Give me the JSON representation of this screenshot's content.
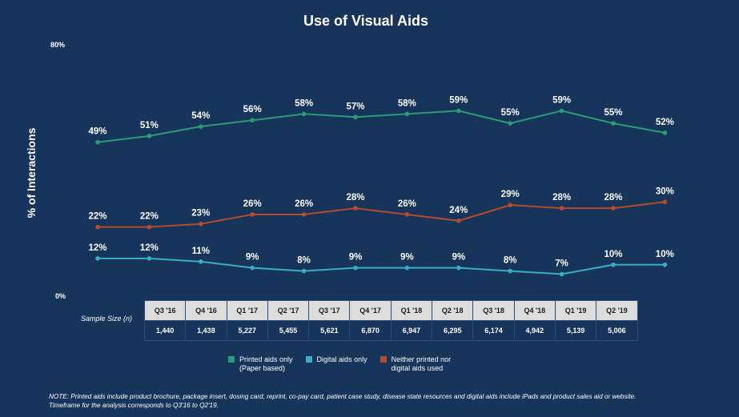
{
  "chart_data": {
    "type": "line",
    "title": "Use of Visual Aids",
    "ylabel": "% of Interactions",
    "ylim": [
      0,
      80
    ],
    "y_tick_labels": [
      "80%",
      "0%"
    ],
    "categories": [
      "Q3 '16",
      "Q4 '16",
      "Q1 '17",
      "Q2 '17",
      "Q3 '17",
      "Q4 '17",
      "Q1 '18",
      "Q2 '18",
      "Q3 '18",
      "Q4 '18",
      "Q1 '19",
      "Q2 '19"
    ],
    "series": [
      {
        "name": "Printed aids only\n(Paper based)",
        "color": "#2a9c78",
        "values": [
          49,
          51,
          54,
          56,
          58,
          57,
          58,
          59,
          55,
          59,
          55,
          52
        ]
      },
      {
        "name": "Digital aids only",
        "color": "#36aec4",
        "values": [
          12,
          12,
          11,
          9,
          8,
          9,
          9,
          9,
          8,
          7,
          10,
          10
        ]
      },
      {
        "name": "Neither printed nor\ndigital aids used",
        "color": "#b54b2c",
        "values": [
          22,
          22,
          23,
          26,
          26,
          28,
          26,
          24,
          29,
          28,
          28,
          30
        ]
      }
    ],
    "data_labels": {
      "printed": [
        "49%",
        "51%",
        "54%",
        "56%",
        "58%",
        "57%",
        "58%",
        "59%",
        "55%",
        "59%",
        "55%",
        "52%"
      ],
      "digital": [
        "12%",
        "12%",
        "11%",
        "9%",
        "8%",
        "9%",
        "9%",
        "9%",
        "8%",
        "7%",
        "10%",
        "10%"
      ],
      "neither": [
        "22%",
        "22%",
        "23%",
        "26%",
        "26%",
        "28%",
        "26%",
        "24%",
        "29%",
        "28%",
        "28%",
        "30%"
      ]
    },
    "grid": false,
    "legend_position": "bottom"
  },
  "sample": {
    "label": "Sample Size (n)",
    "quarters": [
      "Q3 '16",
      "Q4 '16",
      "Q1 '17",
      "Q2 '17",
      "Q3 '17",
      "Q4 '17",
      "Q1 '18",
      "Q2 '18",
      "Q3 '18",
      "Q4 '18",
      "Q1 '19",
      "Q2 '19"
    ],
    "sizes": [
      "1,440",
      "1,438",
      "5,227",
      "5,455",
      "5,621",
      "6,870",
      "6,947",
      "6,295",
      "6,174",
      "4,942",
      "5,139",
      "5,006"
    ]
  },
  "legend": [
    {
      "label": "Printed aids only\n(Paper based)",
      "color": "#2a9c78"
    },
    {
      "label": "Digital aids only",
      "color": "#36aec4"
    },
    {
      "label": "Neither printed nor\ndigital aids used",
      "color": "#b54b2c"
    }
  ],
  "note": "NOTE: Printed aids include product brochure, package insert, dosing card, reprint, co-pay card, patient case study, disease state resources and digital aids include iPads and product sales aid or website.\nTimeframe for the analysis corresponds to Q3'16 to Q2'19."
}
